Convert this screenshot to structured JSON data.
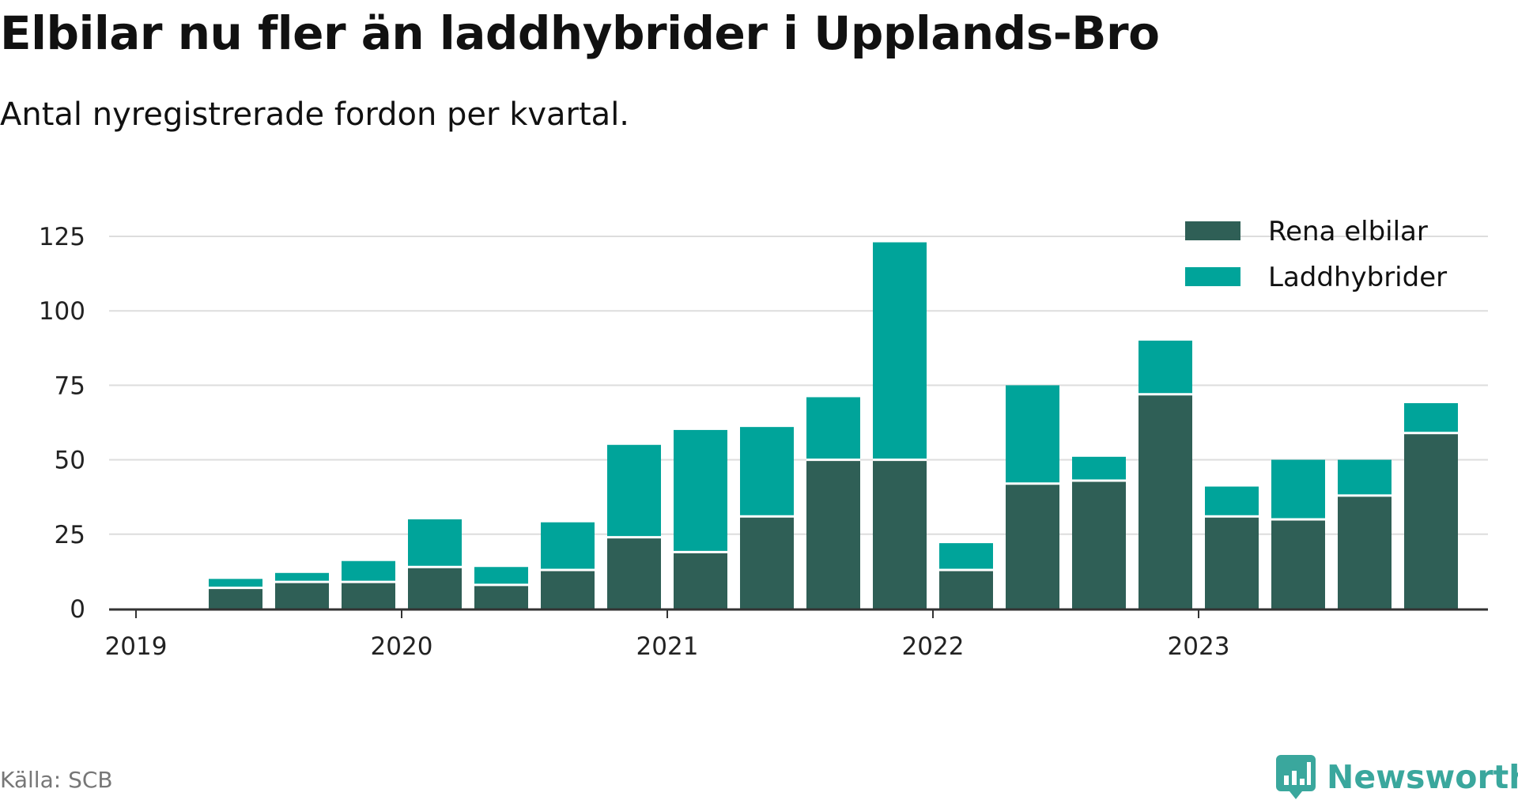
{
  "header": {
    "title": "Elbilar nu fler än laddhybrider i Upplands-Bro",
    "subtitle": "Antal nyregistrerade fordon per kvartal."
  },
  "footer": {
    "source": "Källa: SCB",
    "brand": "Newsworthy"
  },
  "icons": {
    "brand_logo": "newsworthy-chart-bubble-icon"
  },
  "colors": {
    "rena_elbilar": "#2f5f56",
    "laddhybrider": "#00a49a",
    "grid": "#dddddd",
    "axis": "#333333",
    "brand": "#3aa79d"
  },
  "chart_data": {
    "type": "bar",
    "stacked": true,
    "x": [
      "2019 Q2",
      "2019 Q3",
      "2019 Q4",
      "2020 Q1",
      "2020 Q2",
      "2020 Q3",
      "2020 Q4",
      "2021 Q1",
      "2021 Q2",
      "2021 Q3",
      "2021 Q4",
      "2022 Q1",
      "2022 Q2",
      "2022 Q3",
      "2022 Q4",
      "2023 Q1",
      "2023 Q2",
      "2023 Q3",
      "2023 Q4"
    ],
    "series": [
      {
        "name": "Rena elbilar",
        "color": "#2f5f56",
        "values": [
          7,
          9,
          9,
          14,
          8,
          13,
          24,
          19,
          31,
          50,
          50,
          13,
          42,
          43,
          72,
          31,
          30,
          38,
          59
        ]
      },
      {
        "name": "Laddhybrider",
        "color": "#00a49a",
        "values": [
          3,
          3,
          7,
          16,
          6,
          16,
          31,
          41,
          30,
          21,
          73,
          9,
          33,
          8,
          18,
          10,
          20,
          12,
          10
        ]
      }
    ],
    "x_ticks": [
      "2019",
      "2020",
      "2021",
      "2022",
      "2023"
    ],
    "y_ticks": [
      0,
      25,
      50,
      75,
      100,
      125
    ],
    "ylim": [
      0,
      125
    ],
    "xlabel": "",
    "ylabel": "",
    "grid": "horizontal",
    "legend_position": "top-right"
  }
}
